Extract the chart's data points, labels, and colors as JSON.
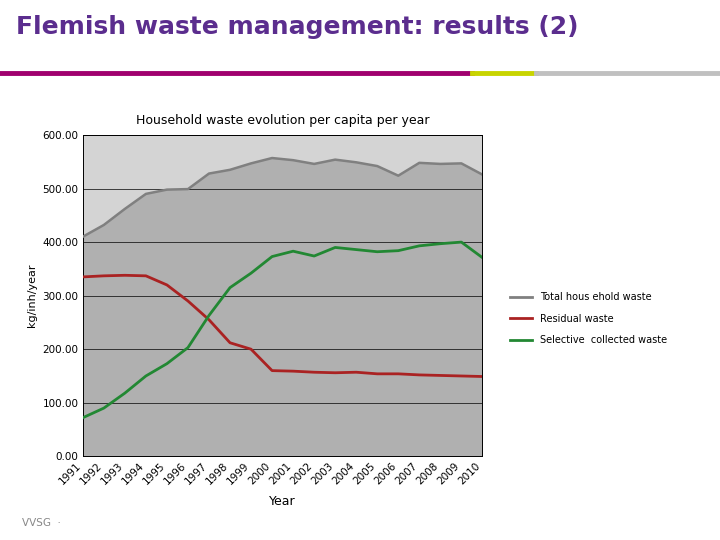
{
  "title": "Flemish waste management: results (2)",
  "chart_title": "Household waste evolution per capita per year",
  "xlabel": "Year",
  "ylabel": "kg/inh/year",
  "years": [
    1991,
    1992,
    1993,
    1994,
    1995,
    1996,
    1997,
    1998,
    1999,
    2000,
    2001,
    2002,
    2003,
    2004,
    2005,
    2006,
    2007,
    2008,
    2009,
    2010
  ],
  "total_household": [
    410,
    432,
    462,
    490,
    498,
    499,
    528,
    535,
    547,
    557,
    553,
    546,
    554,
    549,
    542,
    524,
    548,
    546,
    547,
    526
  ],
  "residual": [
    335,
    337,
    338,
    337,
    320,
    290,
    255,
    212,
    200,
    160,
    159,
    157,
    156,
    157,
    154,
    154,
    152,
    151,
    150,
    149
  ],
  "selective": [
    72,
    90,
    118,
    150,
    173,
    203,
    263,
    315,
    342,
    373,
    383,
    374,
    390,
    386,
    382,
    384,
    393,
    397,
    400,
    371
  ],
  "total_fill_color": "#b0b0b0",
  "total_line_color": "#808080",
  "residual_color": "#aa2222",
  "selective_color": "#228833",
  "plot_bg": "#d4d4d4",
  "outer_bg": "#f0f0f0",
  "bg_color": "#ffffff",
  "legend_total": "Total hous ehold waste",
  "legend_residual": "Residual waste",
  "legend_selective": "Selective  collected waste",
  "ylim_min": 0,
  "ylim_max": 600,
  "yticks": [
    0,
    100,
    200,
    300,
    400,
    500,
    600
  ],
  "header_color": "#5b2d8e",
  "rule_color1": "#a0006e",
  "rule_color2": "#c8d400",
  "rule_color3": "#c0c0c0",
  "footer_color": "#888888"
}
